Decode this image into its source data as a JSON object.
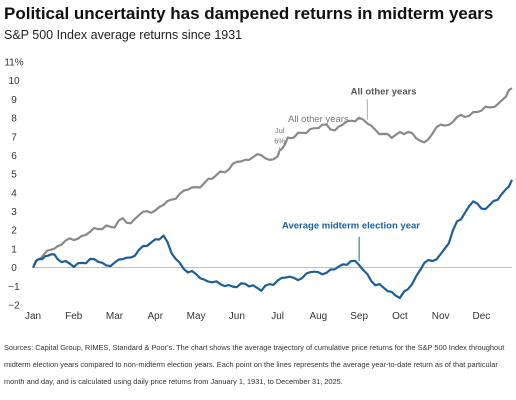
{
  "title": "Political uncertainty has dampened returns in midterm years",
  "subtitle": "S&P 500 Index average returns since 1931",
  "sources": "Sources: Capital Group, RIMES, Standard & Poor's. The chart shows the average trajectory of cumulative price returns for the S&P 500 Index throughout midterm election years compared to non-midterm election years. Each point on the lines represents the average year-to-date return as of that particular month and day, and is calculated using daily price returns from January 1, 1931, to December 31, 2025.",
  "chart_data": {
    "type": "line",
    "title": "Political uncertainty has dampened returns in midterm years",
    "subtitle": "S&P 500 Index average returns since 1931",
    "xlabel": "",
    "ylabel": "",
    "categories": [
      "Jan",
      "Feb",
      "Mar",
      "Apr",
      "May",
      "Jun",
      "Jul",
      "Aug",
      "Sep",
      "Oct",
      "Nov",
      "Dec"
    ],
    "ylim": [
      -2,
      11
    ],
    "y_ticks": [
      -2,
      -1,
      0,
      1,
      2,
      3,
      4,
      5,
      6,
      7,
      8,
      9,
      10,
      11
    ],
    "y_tick_labels": [
      "−2",
      "−1",
      "0",
      "1",
      "2",
      "3",
      "4",
      "5",
      "6",
      "7",
      "8",
      "9",
      "10",
      "11%"
    ],
    "grid": false,
    "colors": {
      "other_years": "#8a8a8a",
      "midterm": "#1d5f95",
      "zero_line": "#aaaaaa"
    },
    "series": [
      {
        "name": "All other years",
        "x": [
          0,
          0.1,
          0.25,
          0.45,
          0.6,
          0.8,
          1.0,
          1.2,
          1.4,
          1.6,
          1.8,
          2.0,
          2.2,
          2.4,
          2.6,
          2.8,
          3.0,
          3.2,
          3.4,
          3.6,
          3.8,
          4.0,
          4.2,
          4.4,
          4.6,
          4.8,
          5.0,
          5.2,
          5.4,
          5.6,
          5.8,
          6.0,
          6.1,
          6.25,
          6.4,
          6.6,
          6.8,
          7.0,
          7.2,
          7.4,
          7.6,
          7.8,
          8.0,
          8.2,
          8.4,
          8.6,
          8.8,
          9.0,
          9.2,
          9.4,
          9.6,
          9.8,
          10.0,
          10.2,
          10.4,
          10.6,
          10.8,
          11.0,
          11.2,
          11.45,
          11.6,
          11.75
        ],
        "values": [
          0.0,
          0.4,
          0.7,
          0.9,
          1.2,
          1.4,
          1.5,
          1.7,
          1.9,
          2.1,
          2.2,
          2.2,
          2.6,
          2.4,
          2.8,
          3.0,
          3.1,
          3.3,
          3.7,
          3.9,
          4.2,
          4.3,
          4.5,
          4.8,
          5.1,
          5.3,
          5.6,
          5.8,
          5.9,
          6.0,
          5.8,
          5.9,
          6.4,
          6.9,
          7.0,
          7.2,
          7.4,
          7.5,
          7.6,
          7.4,
          7.6,
          7.9,
          8.0,
          7.7,
          7.4,
          7.1,
          7.0,
          7.2,
          7.3,
          6.9,
          6.7,
          7.2,
          7.6,
          7.7,
          8.0,
          8.1,
          8.3,
          8.4,
          8.6,
          8.8,
          9.2,
          9.6
        ]
      },
      {
        "name": "Average midterm election year",
        "x": [
          0,
          0.15,
          0.3,
          0.45,
          0.6,
          0.8,
          1.0,
          1.2,
          1.4,
          1.6,
          1.8,
          2.0,
          2.2,
          2.4,
          2.6,
          2.8,
          3.0,
          3.2,
          3.4,
          3.6,
          3.8,
          4.0,
          4.2,
          4.4,
          4.6,
          4.8,
          5.0,
          5.2,
          5.4,
          5.6,
          5.8,
          6.0,
          6.2,
          6.4,
          6.6,
          6.8,
          7.0,
          7.2,
          7.4,
          7.6,
          7.8,
          8.0,
          8.2,
          8.4,
          8.6,
          8.8,
          9.0,
          9.2,
          9.4,
          9.6,
          9.8,
          10.0,
          10.2,
          10.4,
          10.6,
          10.8,
          11.0,
          11.2,
          11.4,
          11.6,
          11.75
        ],
        "values": [
          0.0,
          0.5,
          0.6,
          0.7,
          0.5,
          0.3,
          0.1,
          0.2,
          0.5,
          0.3,
          0.1,
          0.3,
          0.4,
          0.6,
          0.9,
          1.2,
          1.5,
          1.7,
          0.8,
          0.2,
          -0.2,
          -0.4,
          -0.6,
          -0.8,
          -0.9,
          -0.9,
          -1.1,
          -0.8,
          -1.0,
          -1.2,
          -0.9,
          -0.7,
          -0.5,
          -0.6,
          -0.5,
          -0.3,
          -0.2,
          -0.3,
          -0.1,
          0.2,
          0.3,
          0.2,
          -0.4,
          -0.9,
          -1.1,
          -1.3,
          -1.6,
          -1.2,
          -0.4,
          0.2,
          0.4,
          0.7,
          1.3,
          2.5,
          2.9,
          3.6,
          3.1,
          3.4,
          3.6,
          4.2,
          4.7
        ]
      }
    ],
    "annotations": [
      {
        "text": "All other years",
        "series": "All other years"
      },
      {
        "text": "All other years",
        "series": "All other years",
        "subtext": [
          "Jul",
          "6%"
        ],
        "x": 6.0,
        "y": 6.0
      },
      {
        "text": "Average midterm election year",
        "series": "Average midterm election year",
        "x": 8.0,
        "y": 0.2
      }
    ]
  }
}
